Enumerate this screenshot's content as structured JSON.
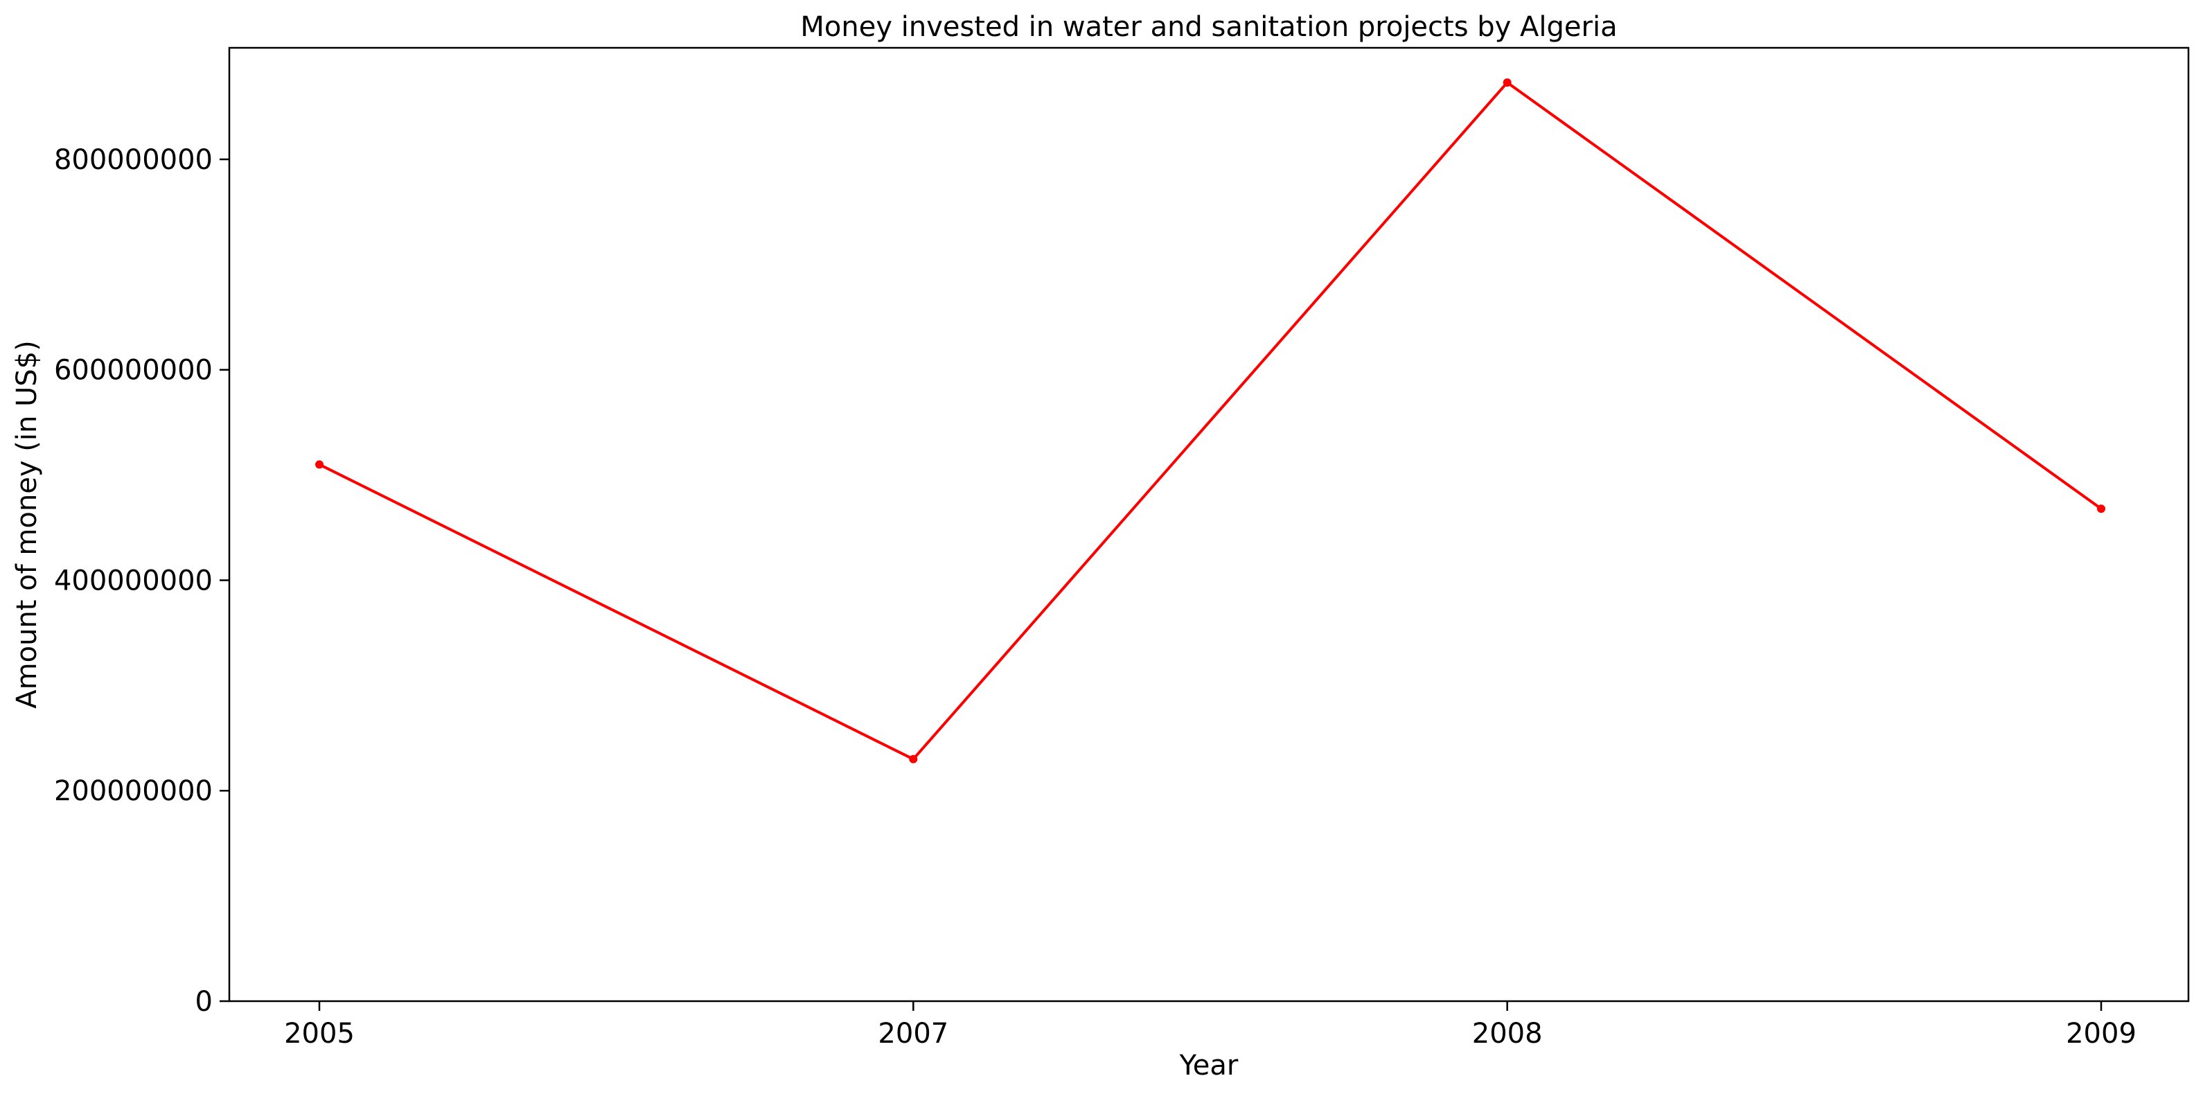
{
  "chart_data": {
    "type": "line",
    "title": "Money invested in water and sanitation projects by Algeria",
    "xlabel": "Year",
    "ylabel": "Amount of money (in US$)",
    "categories": [
      "2005",
      "2007",
      "2008",
      "2009"
    ],
    "series": [
      {
        "values": [
          510000000,
          230000000,
          873000000,
          468000000
        ],
        "color": "#ff0000"
      }
    ],
    "yticks": [
      0,
      200000000,
      400000000,
      600000000,
      800000000
    ],
    "ytick_labels": [
      "0",
      "200000000",
      "400000000",
      "600000000",
      "800000000"
    ],
    "ylim": [
      0,
      906000000
    ],
    "grid": false,
    "legend": "none"
  }
}
